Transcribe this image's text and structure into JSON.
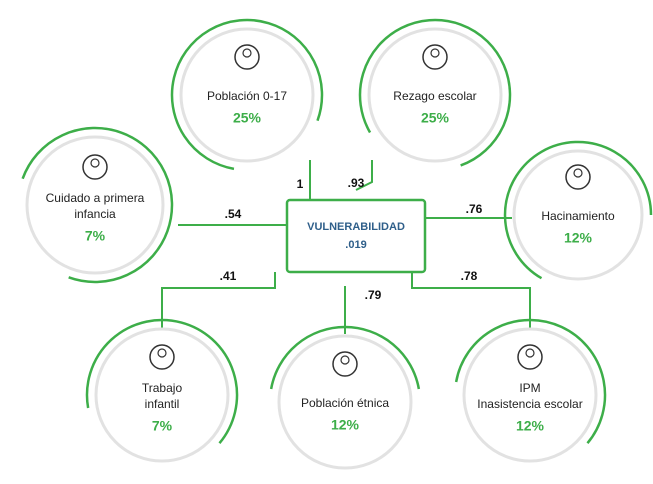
{
  "center": {
    "title": "VULNERABILIDAD",
    "value": ".019"
  },
  "nodes": [
    {
      "label": [
        "Población 0-17"
      ],
      "percent": "25%",
      "loading": "1"
    },
    {
      "label": [
        "Rezago escolar"
      ],
      "percent": "25%",
      "loading": ".93"
    },
    {
      "label": [
        "Cuidado a primera",
        "infancia"
      ],
      "percent": "7%",
      "loading": ".54"
    },
    {
      "label": [
        "Hacinamiento"
      ],
      "percent": "12%",
      "loading": ".76"
    },
    {
      "label": [
        "Trabajo",
        "infantil"
      ],
      "percent": "7%",
      "loading": ".41"
    },
    {
      "label": [
        "Población étnica"
      ],
      "percent": "12%",
      "loading": ".79"
    },
    {
      "label": [
        "IPM",
        "Inasistencia escolar"
      ],
      "percent": "12%",
      "loading": ".78"
    }
  ]
}
